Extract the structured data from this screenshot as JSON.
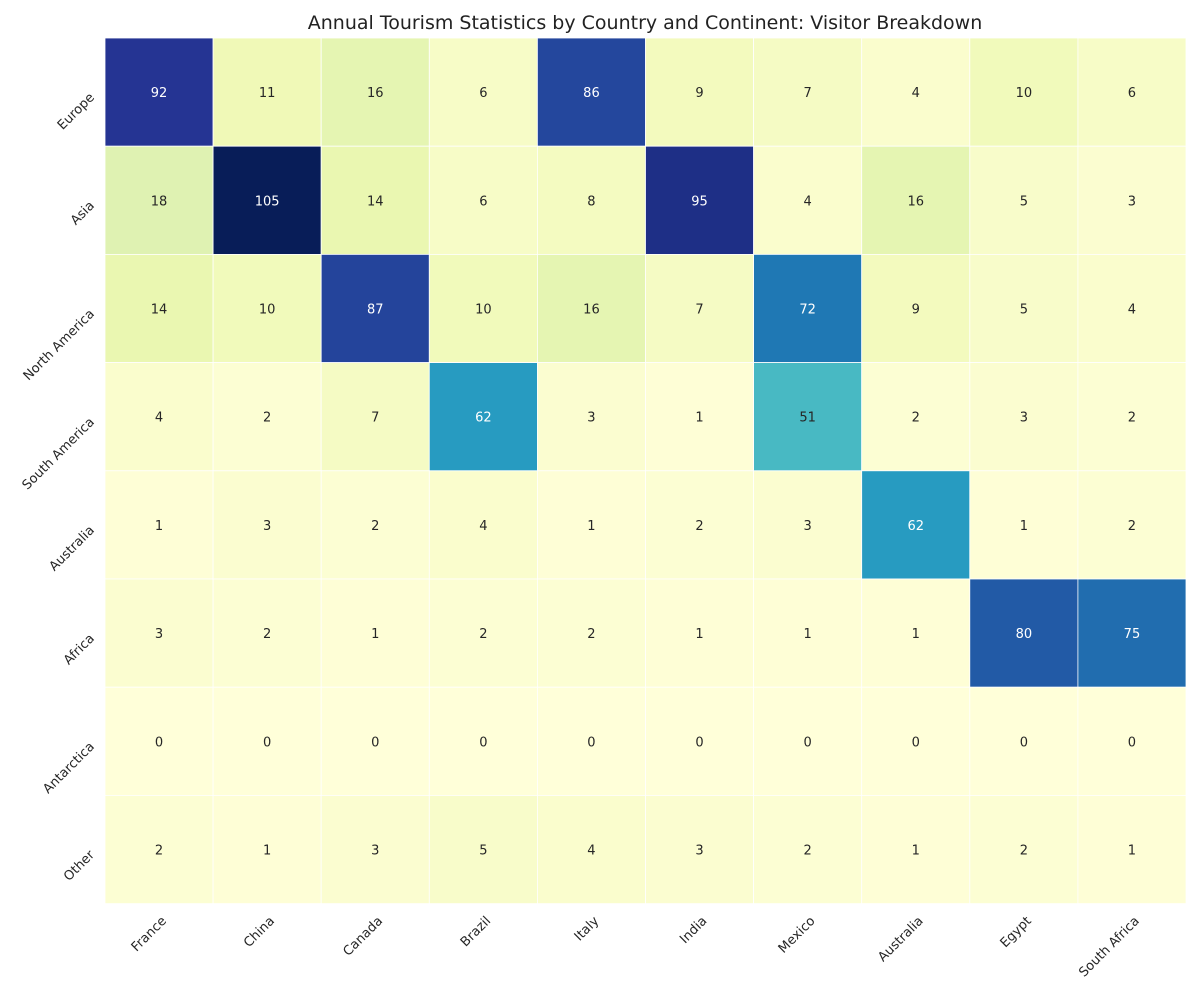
{
  "chart_data": {
    "type": "heatmap",
    "title": "Annual Tourism Statistics by Country and Continent: Visitor Breakdown",
    "xlabel": "",
    "ylabel": "",
    "columns": [
      "France",
      "China",
      "Canada",
      "Brazil",
      "Italy",
      "India",
      "Mexico",
      "Australia",
      "Egypt",
      "South Africa"
    ],
    "rows": [
      "Europe",
      "Asia",
      "North America",
      "South America",
      "Australia",
      "Africa",
      "Antarctica",
      "Other"
    ],
    "values": [
      [
        92,
        11,
        16,
        6,
        86,
        9,
        7,
        4,
        10,
        6
      ],
      [
        18,
        105,
        14,
        6,
        8,
        95,
        4,
        16,
        5,
        3
      ],
      [
        14,
        10,
        87,
        10,
        16,
        7,
        72,
        9,
        5,
        4
      ],
      [
        4,
        2,
        7,
        62,
        3,
        1,
        51,
        2,
        3,
        2
      ],
      [
        1,
        3,
        2,
        4,
        1,
        2,
        3,
        62,
        1,
        2
      ],
      [
        3,
        2,
        1,
        2,
        2,
        1,
        1,
        1,
        80,
        75
      ],
      [
        0,
        0,
        0,
        0,
        0,
        0,
        0,
        0,
        0,
        0
      ],
      [
        2,
        1,
        3,
        5,
        4,
        3,
        2,
        1,
        2,
        1
      ]
    ],
    "value_range": [
      0,
      105
    ],
    "colormap": "YlGnBu",
    "annotations": true,
    "colorbar": false,
    "cell_border_color": "#ffffff"
  }
}
